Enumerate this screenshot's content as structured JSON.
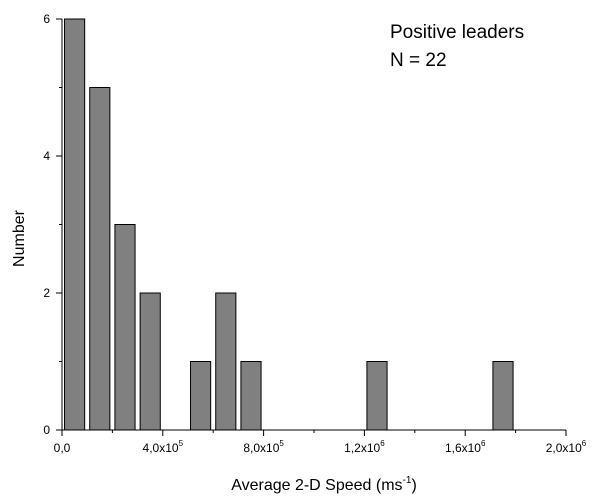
{
  "chart_data": {
    "type": "bar",
    "title": "",
    "xlabel": "Average 2-D Speed (ms",
    "xlabel_exponent": "-1",
    "xlabel_close": ")",
    "ylabel": "Number",
    "annotations": [
      "Positive leaders",
      "N = 22"
    ],
    "xlim": [
      0,
      2000000
    ],
    "ylim": [
      0,
      6
    ],
    "bin_width": 100000,
    "bars": [
      {
        "x": 50000,
        "value": 6
      },
      {
        "x": 150000,
        "value": 5
      },
      {
        "x": 250000,
        "value": 3
      },
      {
        "x": 350000,
        "value": 2
      },
      {
        "x": 450000,
        "value": 0
      },
      {
        "x": 550000,
        "value": 1
      },
      {
        "x": 650000,
        "value": 2
      },
      {
        "x": 750000,
        "value": 1
      },
      {
        "x": 1250000,
        "value": 1
      },
      {
        "x": 1750000,
        "value": 1
      }
    ],
    "x_ticks": [
      {
        "value": 0,
        "base": "0,0",
        "exp": ""
      },
      {
        "value": 400000,
        "base": "4,0x10",
        "exp": "5"
      },
      {
        "value": 800000,
        "base": "8,0x10",
        "exp": "5"
      },
      {
        "value": 1200000,
        "base": "1,2x10",
        "exp": "6"
      },
      {
        "value": 1600000,
        "base": "1,6x10",
        "exp": "6"
      },
      {
        "value": 2000000,
        "base": "2,0x10",
        "exp": "6"
      }
    ],
    "y_ticks": [
      {
        "value": 0,
        "label": "0"
      },
      {
        "value": 2,
        "label": "2"
      },
      {
        "value": 4,
        "label": "4"
      },
      {
        "value": 6,
        "label": "6"
      }
    ],
    "grid": false,
    "bar_color": "#808080",
    "bar_edge_color": "#000000"
  }
}
